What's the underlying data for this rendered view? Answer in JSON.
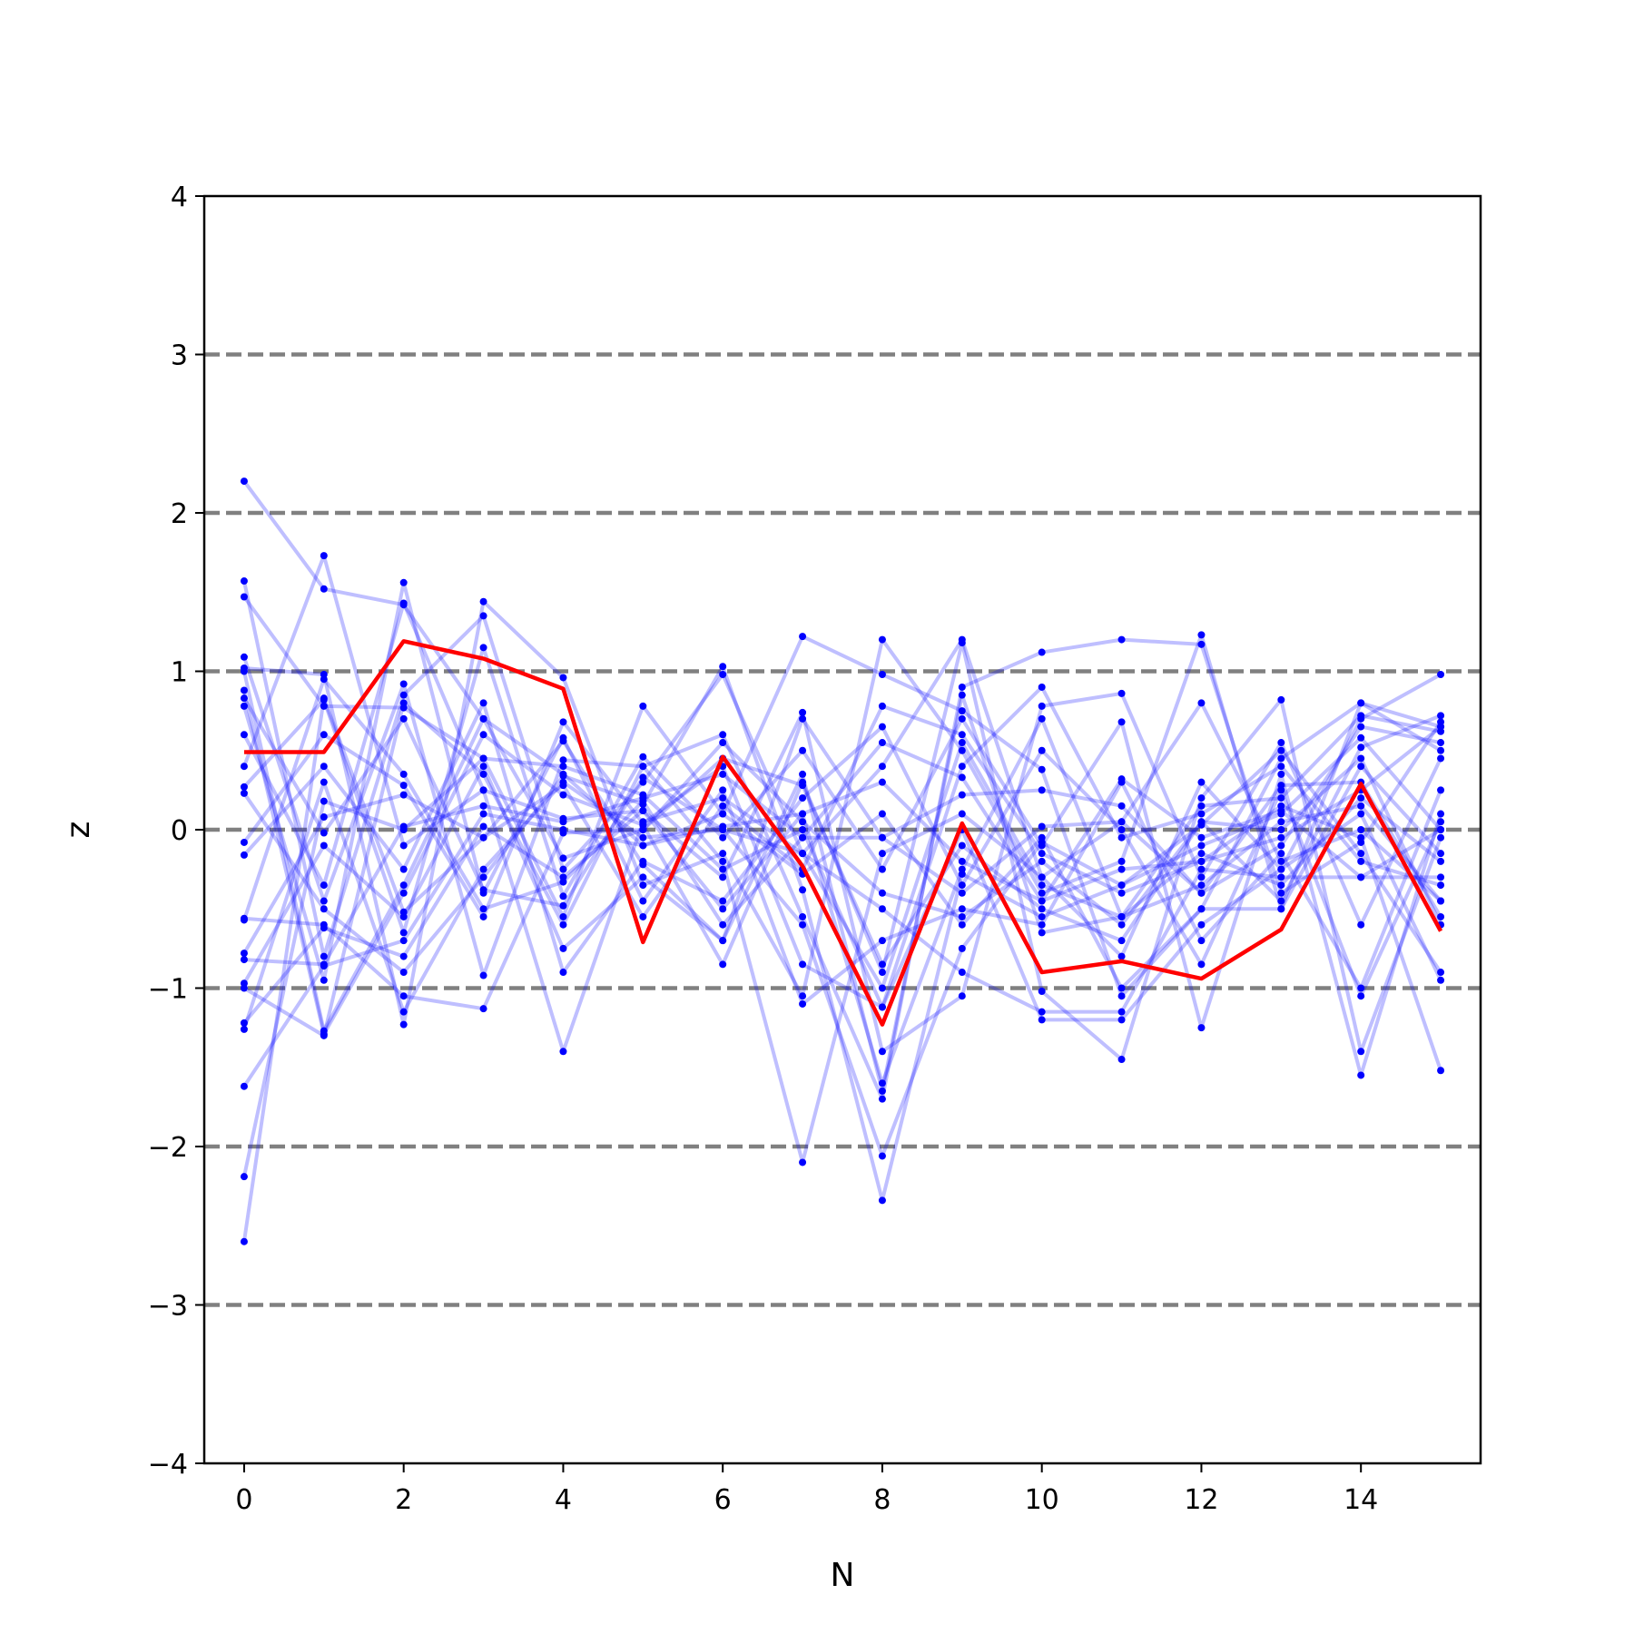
{
  "chart_data": {
    "type": "line",
    "title": "",
    "xlabel": "N",
    "ylabel": "z",
    "xlim": [
      -0.5,
      15.5
    ],
    "ylim": [
      -4,
      4
    ],
    "xticks": [
      0,
      2,
      4,
      6,
      8,
      10,
      12,
      14
    ],
    "xtick_labels": [
      "0",
      "2",
      "4",
      "6",
      "8",
      "10",
      "12",
      "14"
    ],
    "yticks": [
      -4,
      -3,
      -2,
      -1,
      0,
      1,
      2,
      3,
      4
    ],
    "ytick_labels": [
      "−4",
      "−3",
      "−2",
      "−1",
      "0",
      "1",
      "2",
      "3",
      "4"
    ],
    "reference_lines": {
      "y": [
        -3,
        -2,
        -1,
        0,
        1,
        2,
        3
      ],
      "style": "dashed",
      "color": "#808080"
    },
    "colors": {
      "samples": "#0000ff",
      "highlight": "#ff0000",
      "reference": "#808080"
    },
    "x": [
      0,
      1,
      2,
      3,
      4,
      5,
      6,
      7,
      8,
      9,
      10,
      11,
      12,
      13,
      14,
      15
    ],
    "highlight": {
      "values": [
        0.49,
        0.49,
        1.19,
        1.08,
        0.89,
        -0.71,
        0.46,
        -0.23,
        -1.23,
        0.04,
        -0.9,
        -0.83,
        -0.94,
        -0.63,
        0.29,
        -0.64
      ]
    },
    "series": [
      {
        "values": [
          2.2,
          1.52,
          1.42,
          0.7,
          0.35,
          -0.1,
          0.02,
          0.1,
          -1.6,
          -0.25,
          0.7,
          -0.55,
          0.15,
          0.2,
          0.72,
          0.62
        ]
      },
      {
        "values": [
          1.57,
          -0.8,
          0.85,
          1.35,
          -0.25,
          0.3,
          0.98,
          -0.15,
          0.4,
          1.2,
          -0.3,
          -0.8,
          0.3,
          -0.25,
          0.1,
          -0.95
        ]
      },
      {
        "values": [
          1.47,
          0.78,
          0.77,
          0.45,
          -0.55,
          0.78,
          0.1,
          1.22,
          0.98,
          0.75,
          0.38,
          -1.05,
          -0.5,
          0.45,
          0.8,
          0.65
        ]
      },
      {
        "values": [
          1.09,
          -0.45,
          0.92,
          -0.92,
          0.44,
          0.4,
          0.6,
          -0.55,
          -1.7,
          0.9,
          1.12,
          1.2,
          1.17,
          -0.4,
          -0.08,
          0.68
        ]
      },
      {
        "values": [
          1.02,
          0.98,
          -1.23,
          1.44,
          0.96,
          -0.35,
          -0.15,
          -1.05,
          1.2,
          0.5,
          -0.4,
          -0.2,
          1.23,
          -0.5,
          0.8,
          0.5
        ]
      },
      {
        "values": [
          0.88,
          -1.29,
          -0.4,
          0.6,
          0.22,
          0.03,
          -0.85,
          0.3,
          -0.9,
          1.18,
          -1.02,
          -1.45,
          0.2,
          0.82,
          -1.4,
          -0.05
        ]
      },
      {
        "values": [
          0.78,
          -0.95,
          1.56,
          -0.4,
          0.58,
          -0.45,
          0.25,
          -1.1,
          -0.7,
          -0.5,
          -0.6,
          0.3,
          -0.7,
          -0.15,
          -1.0,
          0.25
        ]
      },
      {
        "values": [
          0.4,
          1.73,
          -0.1,
          0.25,
          0.07,
          0.12,
          -0.3,
          0.74,
          -1.4,
          -1.05,
          0.78,
          0.86,
          -0.3,
          0.55,
          -0.6,
          0.45
        ]
      },
      {
        "values": [
          0.27,
          0.82,
          -0.65,
          1.15,
          -0.42,
          0.46,
          -0.05,
          0.5,
          -0.25,
          0.7,
          -0.1,
          0.68,
          -1.25,
          0.35,
          -1.55,
          0.1
        ]
      },
      {
        "values": [
          0.23,
          -0.5,
          -0.9,
          -0.3,
          0.34,
          0.16,
          1.03,
          -0.38,
          -2.34,
          -0.28,
          -0.55,
          -0.35,
          -0.1,
          0.1,
          0.58,
          0.0
        ]
      },
      {
        "values": [
          -0.08,
          0.6,
          0.28,
          -0.55,
          0.68,
          0.04,
          0.4,
          -0.85,
          -1.12,
          0.4,
          0.9,
          -0.05,
          0.1,
          0.4,
          -0.2,
          -0.35
        ]
      },
      {
        "values": [
          -0.16,
          0.4,
          -0.25,
          0.8,
          -0.9,
          -0.2,
          -0.45,
          0.2,
          0.65,
          -0.35,
          0.5,
          0.0,
          -0.85,
          0.25,
          -1.05,
          0.05
        ]
      },
      {
        "values": [
          -0.56,
          -0.6,
          -1.05,
          -1.13,
          -0.02,
          0.0,
          0.55,
          0.05,
          -0.4,
          -0.55,
          -0.2,
          -0.6,
          0.05,
          0.0,
          0.45,
          -0.6
        ]
      },
      {
        "values": [
          -0.78,
          0.08,
          0.22,
          -0.05,
          0.28,
          -0.55,
          0.15,
          -0.25,
          0.78,
          0.6,
          -0.15,
          -0.4,
          -0.2,
          0.15,
          -0.05,
          -1.52
        ]
      },
      {
        "values": [
          -0.82,
          -0.85,
          0.02,
          0.15,
          0.05,
          0.2,
          0.35,
          -0.05,
          -0.05,
          -0.4,
          0.02,
          0.05,
          -0.4,
          -0.1,
          0.65,
          0.55
        ]
      },
      {
        "values": [
          -0.97,
          -0.1,
          -0.55,
          0.4,
          -0.75,
          -0.3,
          -0.7,
          0.35,
          -1.65,
          0.85,
          -0.65,
          -0.55,
          -0.15,
          -0.35,
          0.2,
          -0.2
        ]
      },
      {
        "values": [
          -1.0,
          -1.3,
          0.8,
          0.35,
          -0.6,
          0.4,
          -0.2,
          -2.1,
          -0.15,
          0.1,
          -0.3,
          0.05,
          0.8,
          -0.2,
          0.0,
          -0.45
        ]
      },
      {
        "values": [
          -1.22,
          -0.62,
          -0.8,
          0.02,
          -0.3,
          0.12,
          -0.5,
          0.1,
          0.3,
          -0.2,
          -0.45,
          -0.25,
          -0.2,
          -0.05,
          0.25,
          0.65
        ]
      },
      {
        "values": [
          -1.26,
          0.3,
          -1.15,
          -0.25,
          0.3,
          -0.05,
          0.0,
          -0.15,
          -0.5,
          -0.9,
          -1.15,
          -1.15,
          -0.25,
          -0.3,
          -0.3,
          -0.3
        ]
      },
      {
        "values": [
          -1.62,
          -0.86,
          -0.7,
          0.1,
          0.0,
          -0.1,
          0.1,
          -0.28,
          0.1,
          -0.6,
          -0.05,
          -1.0,
          -0.5,
          -0.5,
          0.4,
          -0.15
        ]
      },
      {
        "values": [
          -2.19,
          0.18,
          0.0,
          0.45,
          0.4,
          0.22,
          -0.25,
          0.0,
          -1.12,
          0.0,
          -1.2,
          -1.2,
          -0.6,
          -0.25,
          0.7,
          0.98
        ]
      },
      {
        "values": [
          -2.6,
          0.83,
          -0.52,
          -0.05,
          0.56,
          -0.22,
          -0.7,
          0.7,
          -0.05,
          0.22,
          0.25,
          0.15,
          -0.4,
          0.28,
          0.3,
          -0.55
        ]
      },
      {
        "values": [
          0.83,
          -0.02,
          0.7,
          -0.38,
          -0.48,
          0.33,
          0.0,
          -0.6,
          -2.06,
          -0.75,
          -0.08,
          -0.35,
          0.03,
          0.5,
          -0.15,
          -0.9
        ]
      },
      {
        "values": [
          1.0,
          -1.27,
          -0.35,
          0.7,
          -0.18,
          0.0,
          0.45,
          0.28,
          -0.85,
          -0.1,
          -0.5,
          -0.7,
          0.05,
          -0.45,
          0.52,
          0.72
        ]
      },
      {
        "values": [
          -0.57,
          0.95,
          0.35,
          -0.5,
          -0.33,
          0.18,
          -0.6,
          -0.05,
          0.55,
          0.33,
          -0.45,
          0.32,
          -0.05,
          0.12,
          -0.3,
          0.0
        ]
      },
      {
        "values": [
          0.6,
          -0.35,
          1.43,
          0.25,
          -1.4,
          0.05,
          0.2,
          -0.15,
          -1.0,
          0.55,
          -0.35,
          -0.55,
          -0.35,
          0.05,
          0.15,
          -0.45
        ]
      }
    ]
  }
}
